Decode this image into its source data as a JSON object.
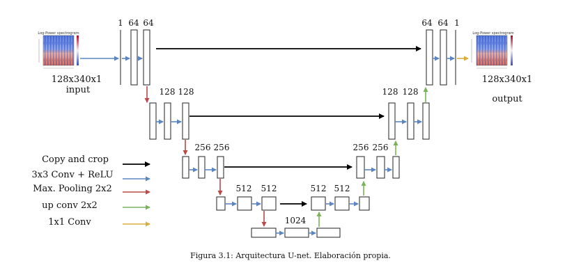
{
  "colors": {
    "copy_crop": "#000000",
    "conv": "#5b86c2",
    "pool": "#b84a48",
    "upconv": "#7ab35a",
    "conv1x1": "#d9ad3c"
  },
  "input": {
    "title": "Log-Power spectrogram",
    "size": "128x340x1",
    "label": "input"
  },
  "output": {
    "title": "Log-Power spectrogram",
    "size": "128x340x1",
    "label": "output"
  },
  "channels": {
    "level1_left": [
      "1",
      "64",
      "64"
    ],
    "level1_right": [
      "64",
      "64",
      "1"
    ],
    "level2_left": [
      "128",
      "128"
    ],
    "level2_right": [
      "128",
      "128"
    ],
    "level3_left": [
      "256",
      "256"
    ],
    "level3_right": [
      "256",
      "256"
    ],
    "level4_left": [
      "512",
      "512"
    ],
    "level4_right": [
      "512",
      "512"
    ],
    "bottom": "1024"
  },
  "legend": [
    {
      "label": "Copy and crop",
      "color_key": "copy_crop"
    },
    {
      "label": "3x3 Conv + ReLU",
      "color_key": "conv"
    },
    {
      "label": "Max. Pooling 2x2",
      "color_key": "pool"
    },
    {
      "label": "up conv 2x2",
      "color_key": "upconv"
    },
    {
      "label": "1x1 Conv",
      "color_key": "conv1x1"
    }
  ],
  "caption": "Figura 3.1: Arquitectura U-net. Elaboración propia."
}
